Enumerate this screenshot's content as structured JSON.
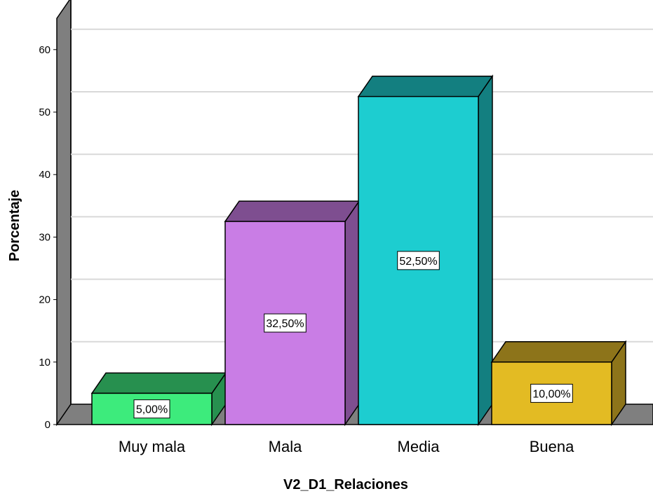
{
  "chart_data": {
    "type": "bar",
    "categories": [
      "Muy mala",
      "Mala",
      "Media",
      "Buena"
    ],
    "values": [
      5.0,
      32.5,
      52.5,
      10.0
    ],
    "data_labels": [
      "5,00%",
      "32,50%",
      "52,50%",
      "10,00%"
    ],
    "xlabel": "V2_D1_Relaciones",
    "ylabel": "Porcentaje",
    "ylim": [
      0,
      65
    ],
    "yticks": [
      0,
      10,
      20,
      30,
      40,
      50,
      60
    ],
    "grid": true,
    "style": "3d-bar",
    "colors": {
      "bar_front": [
        "#3DEB7C",
        "#C97DE5",
        "#1DCDD0",
        "#E3BB23"
      ],
      "bar_top": [
        "#27904F",
        "#7E4E90",
        "#137F80",
        "#8D741A"
      ],
      "bar_side": [
        "#27904F",
        "#7E4E90",
        "#137F80",
        "#8D741A"
      ],
      "wall": "#7F7F7F",
      "gridline": "#D9D9D9"
    }
  }
}
